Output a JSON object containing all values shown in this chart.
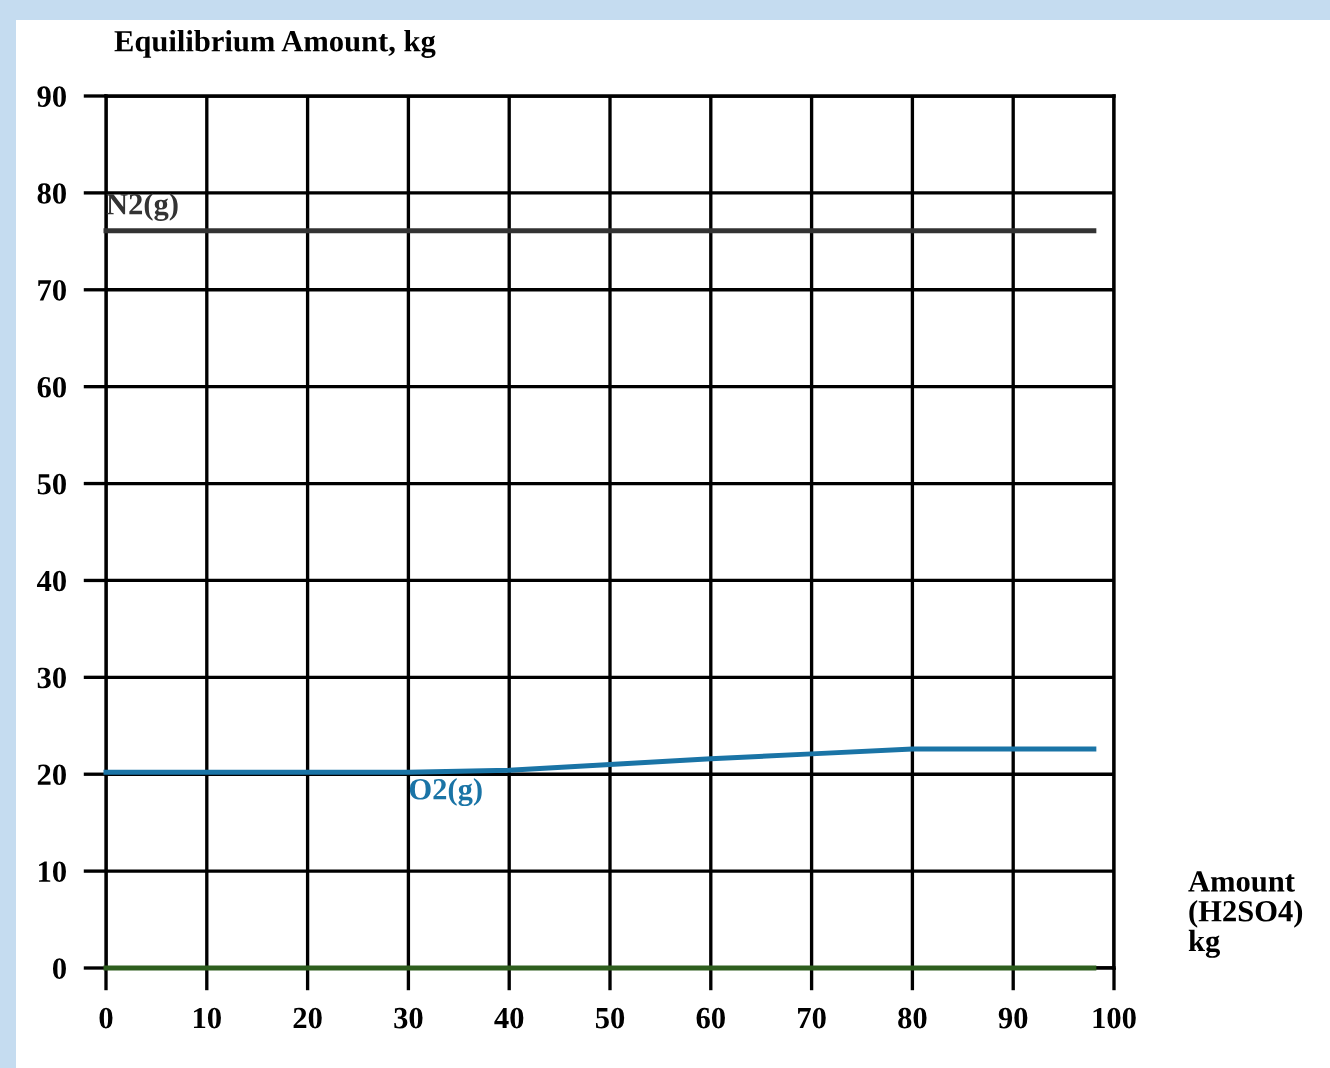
{
  "chart_data": {
    "type": "line",
    "title": "Equilibrium Amount, kg",
    "xlabel": "Amount\n(H2SO4)\nkg",
    "x": [
      0,
      10,
      20,
      30,
      40,
      50,
      60,
      70,
      80,
      90,
      98
    ],
    "series": [
      {
        "name": "N2(g)",
        "color": "#333333",
        "values": [
          76.1,
          76.1,
          76.1,
          76.1,
          76.1,
          76.1,
          76.1,
          76.1,
          76.1,
          76.1,
          76.1
        ]
      },
      {
        "name": "O2(g)",
        "color": "#1a74a6",
        "values": [
          20.2,
          20.2,
          20.2,
          20.2,
          20.4,
          21.0,
          21.6,
          22.1,
          22.6,
          22.6,
          22.6
        ]
      },
      {
        "color": "#2e5e1e",
        "values": [
          0,
          0,
          0,
          0,
          0,
          0,
          0,
          0,
          0,
          0,
          0
        ]
      }
    ],
    "xlim": [
      0,
      100
    ],
    "xticks": [
      0,
      10,
      20,
      30,
      40,
      50,
      60,
      70,
      80,
      90,
      100
    ],
    "ylim": [
      0,
      90
    ],
    "yticks": [
      0,
      10,
      20,
      30,
      40,
      50,
      60,
      70,
      80,
      90
    ],
    "grid": true,
    "legend": false,
    "marker": "none",
    "line_style": "solid"
  }
}
